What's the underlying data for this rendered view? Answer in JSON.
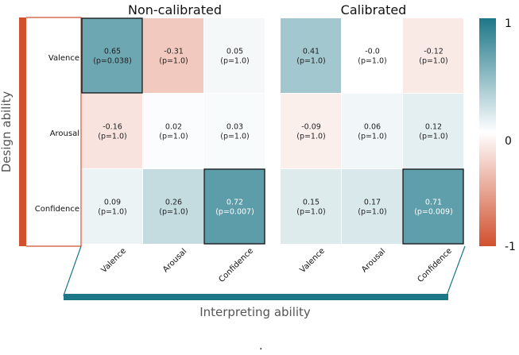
{
  "chart_data": {
    "type": "heatmap",
    "row_axis_title": "Design ability",
    "col_axis_title": "Interpreting ability",
    "rows": [
      "Valence",
      "Arousal",
      "Confidence"
    ],
    "cols": [
      "Valence",
      "Arousal",
      "Confidence"
    ],
    "colorbar": {
      "min": -1,
      "max": 1,
      "ticks": [
        "1",
        "0",
        "-1"
      ],
      "neg_color": "#d1502e",
      "mid_color": "#ffffff",
      "pos_color": "#1d7788"
    },
    "panels": [
      {
        "title": "Non-calibrated",
        "values": [
          [
            0.65,
            -0.31,
            0.05
          ],
          [
            -0.16,
            0.02,
            0.03
          ],
          [
            0.09,
            0.26,
            0.72
          ]
        ],
        "labels": [
          [
            [
              "0.65",
              "(p=0.038)"
            ],
            [
              "-0.31",
              "(p=1.0)"
            ],
            [
              "0.05",
              "(p=1.0)"
            ]
          ],
          [
            [
              "-0.16",
              "(p=1.0)"
            ],
            [
              "0.02",
              "(p=1.0)"
            ],
            [
              "0.03",
              "(p=1.0)"
            ]
          ],
          [
            [
              "0.09",
              "(p=1.0)"
            ],
            [
              "0.26",
              "(p=1.0)"
            ],
            [
              "0.72",
              "(p=0.007)"
            ]
          ]
        ],
        "highlighted": [
          [
            true,
            false,
            false
          ],
          [
            false,
            false,
            false
          ],
          [
            false,
            false,
            true
          ]
        ]
      },
      {
        "title": "Calibrated",
        "values": [
          [
            0.41,
            -0.0,
            -0.12
          ],
          [
            -0.09,
            0.06,
            0.12
          ],
          [
            0.15,
            0.17,
            0.71
          ]
        ],
        "labels": [
          [
            [
              "0.41",
              "(p=1.0)"
            ],
            [
              "-0.0",
              "(p=1.0)"
            ],
            [
              "-0.12",
              "(p=1.0)"
            ]
          ],
          [
            [
              "-0.09",
              "(p=1.0)"
            ],
            [
              "0.06",
              "(p=1.0)"
            ],
            [
              "0.12",
              "(p=1.0)"
            ]
          ],
          [
            [
              "0.15",
              "(p=1.0)"
            ],
            [
              "0.17",
              "(p=1.0)"
            ],
            [
              "0.71",
              "(p=0.009)"
            ]
          ]
        ],
        "highlighted": [
          [
            false,
            false,
            false
          ],
          [
            false,
            false,
            false
          ],
          [
            false,
            false,
            true
          ]
        ]
      }
    ],
    "footer_mark": "."
  }
}
